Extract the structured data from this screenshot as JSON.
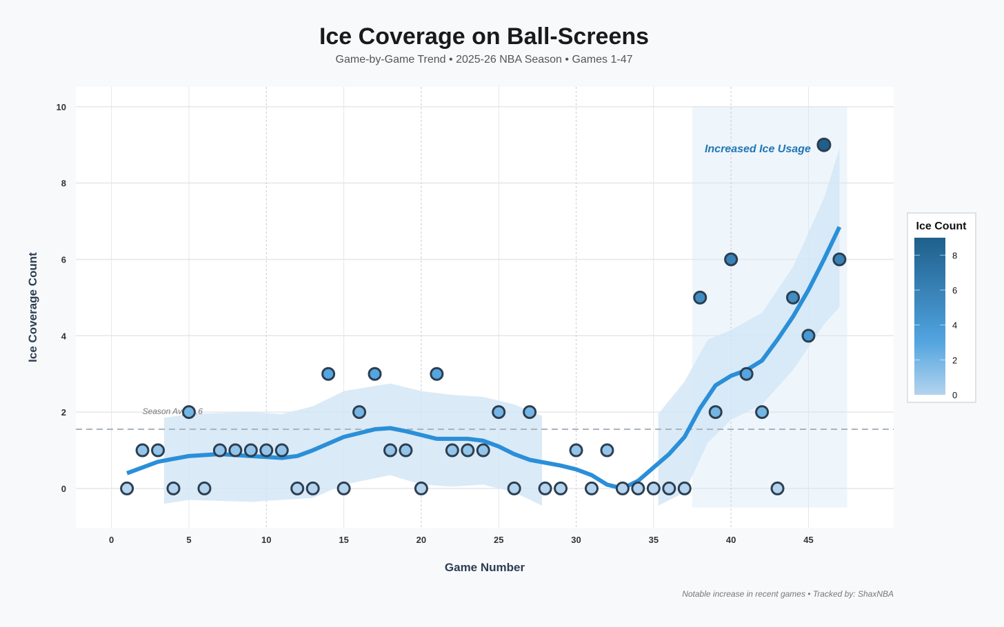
{
  "chart_data": {
    "type": "scatter",
    "title": "Ice Coverage on Ball-Screens",
    "subtitle": "Game-by-Game Trend • 2025-26 NBA Season • Games 1-47",
    "xlabel": "Game Number",
    "ylabel": "Ice Coverage Count",
    "xlim": [
      -2.3,
      50.5
    ],
    "ylim": [
      -1.03,
      10.52
    ],
    "xticks": [
      0,
      5,
      10,
      15,
      20,
      25,
      30,
      35,
      40,
      45
    ],
    "yticks": [
      0,
      2,
      4,
      6,
      8,
      10
    ],
    "grid": true,
    "x": [
      1,
      2,
      3,
      4,
      5,
      6,
      7,
      8,
      9,
      10,
      11,
      12,
      13,
      14,
      15,
      16,
      17,
      18,
      19,
      20,
      21,
      22,
      23,
      24,
      25,
      26,
      27,
      28,
      29,
      30,
      31,
      32,
      33,
      34,
      35,
      36,
      37,
      38,
      39,
      40,
      41,
      42,
      43,
      44,
      45,
      46,
      47
    ],
    "values": [
      0,
      1,
      1,
      0,
      2,
      0,
      1,
      1,
      1,
      1,
      1,
      0,
      0,
      3,
      0,
      2,
      3,
      1,
      1,
      0,
      3,
      1,
      1,
      1,
      2,
      0,
      2,
      0,
      0,
      1,
      0,
      1,
      0,
      0,
      0,
      0,
      0,
      5,
      2,
      6,
      3,
      2,
      0,
      5,
      4,
      9,
      6
    ],
    "trend": {
      "x": [
        1,
        3,
        5,
        7,
        9,
        11,
        12,
        13,
        15,
        17,
        18,
        19,
        21,
        23,
        24,
        25,
        26,
        27,
        29,
        30,
        31,
        32,
        33,
        34,
        35,
        36,
        37,
        38,
        39,
        40,
        41,
        42,
        43,
        44,
        45,
        46,
        47
      ],
      "y": [
        0.4,
        0.7,
        0.85,
        0.9,
        0.85,
        0.8,
        0.85,
        1.0,
        1.35,
        1.55,
        1.58,
        1.5,
        1.3,
        1.3,
        1.25,
        1.1,
        0.9,
        0.75,
        0.6,
        0.5,
        0.35,
        0.1,
        0,
        0.2,
        0.55,
        0.9,
        1.35,
        2.1,
        2.7,
        2.95,
        3.1,
        3.35,
        3.9,
        4.5,
        5.2,
        6.0,
        6.85
      ]
    },
    "confidence_bands": [
      {
        "x": [
          3.4,
          5,
          9,
          11,
          13,
          15,
          18,
          20,
          22,
          24,
          26,
          27.8
        ],
        "upper": [
          1.85,
          1.95,
          2.0,
          1.95,
          2.15,
          2.55,
          2.75,
          2.55,
          2.45,
          2.4,
          2.2,
          1.9
        ],
        "lower": [
          -0.4,
          -0.3,
          -0.35,
          -0.3,
          -0.25,
          0.1,
          0.35,
          0.1,
          0.05,
          0.1,
          -0.1,
          -0.45
        ]
      },
      {
        "x": [
          35.3,
          37,
          38.5,
          40,
          42,
          44,
          46,
          47
        ],
        "upper": [
          1.95,
          2.8,
          3.9,
          4.15,
          4.6,
          5.8,
          7.6,
          8.9
        ],
        "lower": [
          -0.45,
          -0.1,
          1.2,
          1.8,
          2.2,
          3.1,
          4.3,
          4.75
        ]
      }
    ],
    "season_avg": {
      "value": 1.55,
      "label": "Season Avg: 1.6"
    },
    "highlight": {
      "x_range": [
        37.5,
        47.5
      ],
      "y_range": [
        -0.5,
        10
      ],
      "label": "Increased Ice Usage"
    },
    "colorbar": {
      "title": "Ice Count",
      "range": [
        0,
        9
      ],
      "ticks": [
        0,
        2,
        4,
        6,
        8
      ]
    },
    "colors": {
      "trend": "#2a8fd8",
      "band": "#d4e6f6",
      "highlight": "#eef5fb",
      "marker_stroke": "#2c3e50",
      "low": "#b3d3ee",
      "mid": "#4fa3df",
      "high": "#1f5f8b",
      "annotation": "#1f77b4"
    }
  },
  "footer": "Notable increase in recent games • Tracked by: ShaxNBA"
}
